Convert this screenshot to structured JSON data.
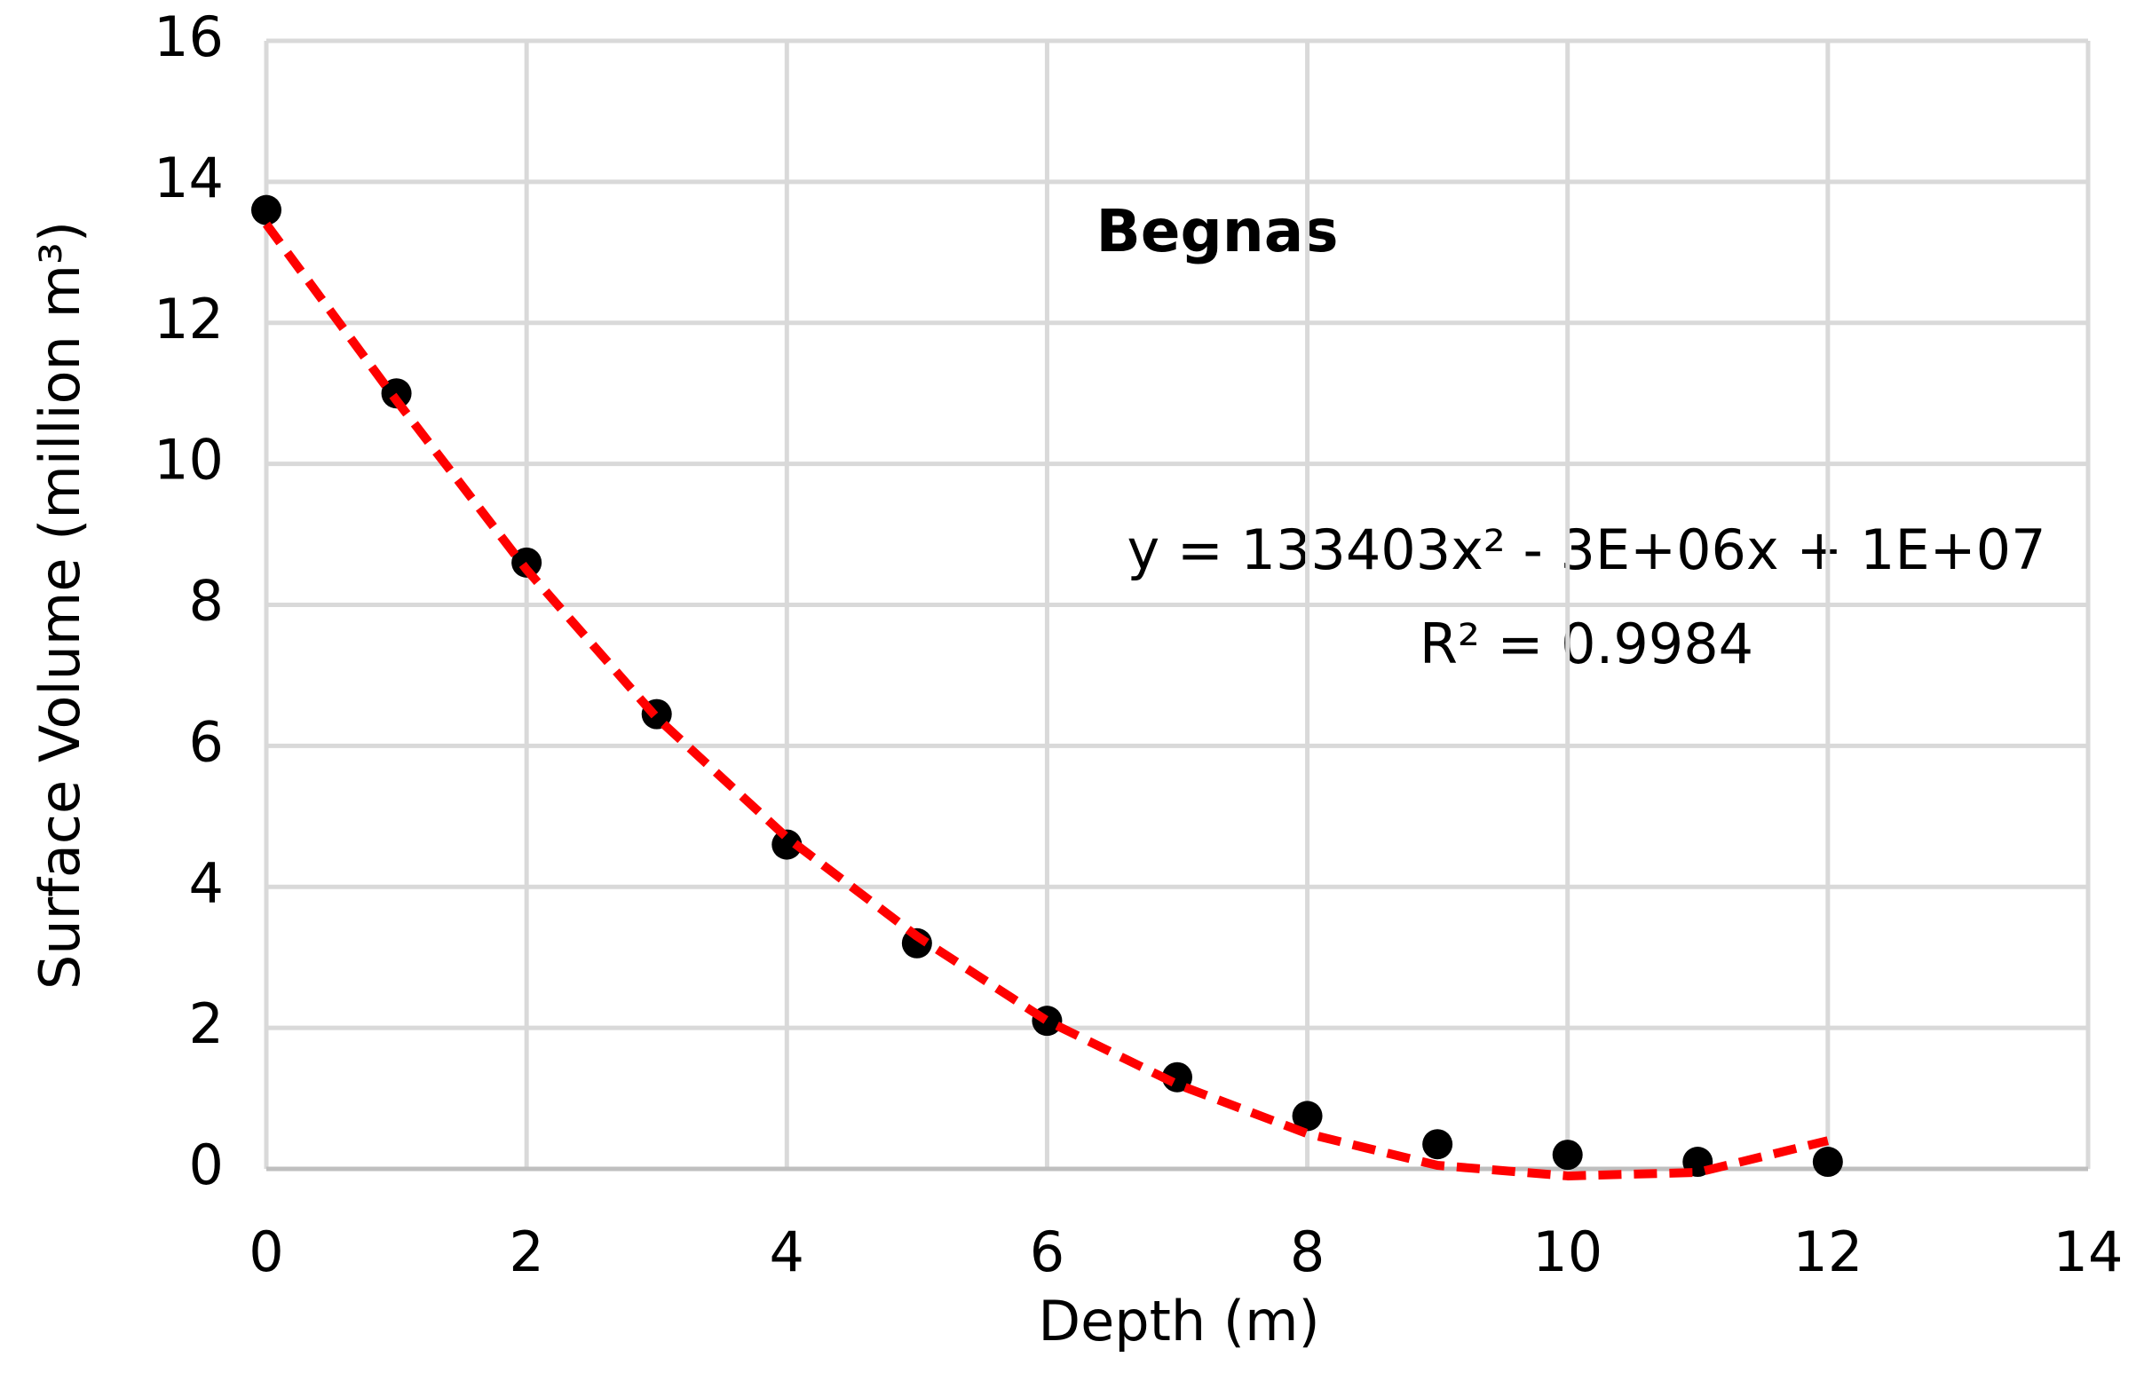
{
  "chart_data": {
    "type": "scatter",
    "title": "Begnas",
    "x_label": "Depth (m)",
    "y_label": "Surface Volume (million m³)",
    "annotations": [
      "y = 133403x² - 3E+06x + 1E+07",
      "R² = 0.9984"
    ],
    "x": [
      0,
      1,
      2,
      3,
      4,
      5,
      6,
      7,
      8,
      9,
      10,
      11,
      12
    ],
    "values": [
      13.6,
      11.0,
      8.6,
      6.45,
      4.6,
      3.2,
      2.1,
      1.3,
      0.75,
      0.35,
      0.2,
      0.1,
      0.1
    ],
    "color": "#000000",
    "trendline": {
      "x": [
        0,
        1,
        2,
        3,
        4,
        5,
        6,
        7,
        8,
        9,
        10,
        11,
        12
      ],
      "values": [
        13.4,
        10.9,
        8.5,
        6.4,
        4.7,
        3.3,
        2.1,
        1.2,
        0.5,
        0.05,
        -0.1,
        -0.05,
        0.4
      ],
      "color": "#ff0000",
      "dashed": true
    },
    "xlim": [
      0,
      14
    ],
    "xticks": [
      0,
      2,
      4,
      6,
      8,
      10,
      12,
      14
    ],
    "ylim": [
      0,
      16
    ],
    "yticks": [
      0,
      2,
      4,
      6,
      8,
      10,
      12,
      14,
      16
    ],
    "grid": true
  }
}
